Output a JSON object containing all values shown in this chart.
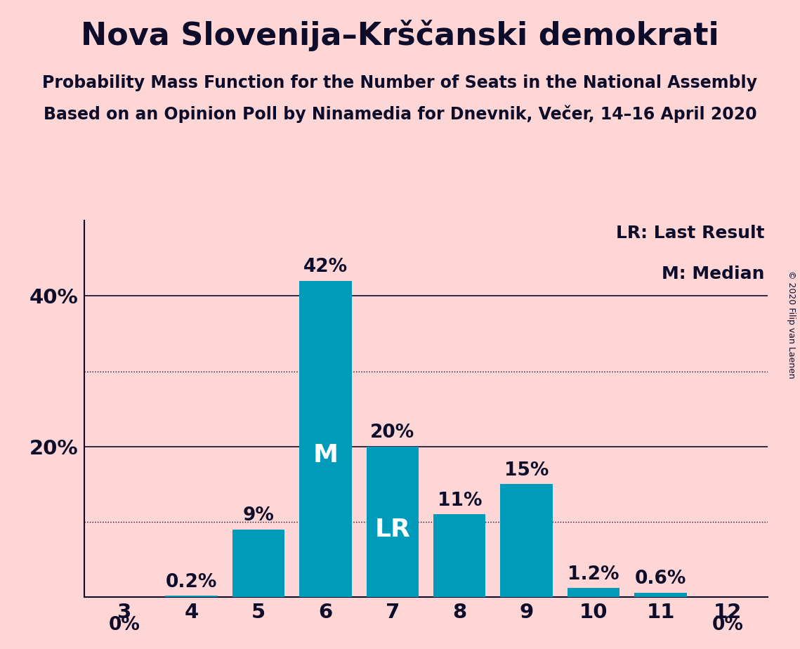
{
  "title": "Nova Slovenija–Krščanski demokrati",
  "subtitle1": "Probability Mass Function for the Number of Seats in the National Assembly",
  "subtitle2": "Based on an Opinion Poll by Ninamedia for Dnevnik, Večer, 14–16 April 2020",
  "copyright": "© 2020 Filip van Laenen",
  "categories": [
    3,
    4,
    5,
    6,
    7,
    8,
    9,
    10,
    11,
    12
  ],
  "values": [
    0.0,
    0.2,
    9.0,
    42.0,
    20.0,
    11.0,
    15.0,
    1.2,
    0.6,
    0.0
  ],
  "value_labels": [
    "0%",
    "0.2%",
    "9%",
    "42%",
    "20%",
    "11%",
    "15%",
    "1.2%",
    "0.6%",
    "0%"
  ],
  "bar_color": "#009BBB",
  "background_color": "#FFD6D6",
  "text_color": "#0D0D2B",
  "median_bar_index": 3,
  "lr_bar_index": 4,
  "median_label": "M",
  "lr_label": "LR",
  "legend_lr": "LR: Last Result",
  "legend_m": "M: Median",
  "yticks": [
    20,
    40
  ],
  "ytick_labels": [
    "20%",
    "40%"
  ],
  "ylim": [
    0,
    50
  ],
  "dotted_lines": [
    10,
    30
  ],
  "title_fontsize": 32,
  "subtitle_fontsize": 17,
  "bar_label_fontsize": 19,
  "inside_label_fontsize": 26,
  "legend_fontsize": 18,
  "tick_fontsize": 21,
  "copyright_fontsize": 9,
  "bar_width": 0.78
}
